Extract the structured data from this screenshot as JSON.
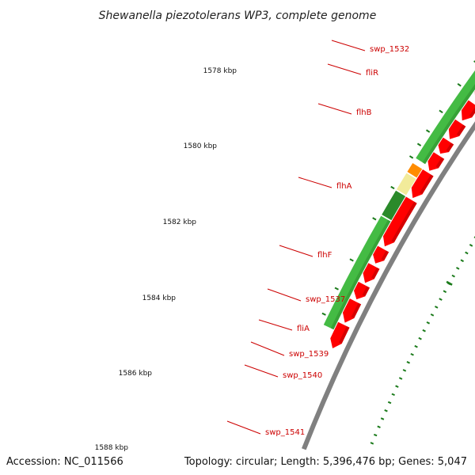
{
  "title": "Shewanella piezotolerans WP3, complete genome",
  "accession": "Accession: NC_011566",
  "summary": "Topology: circular; Length: 5,396,476 bp; Genes: 5,047",
  "colors": {
    "backbone": "#808080",
    "cds": "#ff0000",
    "cds_dark": "#b30000",
    "tick": "#1a7a1a",
    "label": "#cc0000",
    "green_dark": "#2a8a2a",
    "green_light": "#9be02a",
    "green_mid": "#44bb44",
    "pale_yellow": "#f2eb9a",
    "orange": "#ff8c00"
  },
  "kbp_labels": [
    {
      "pos_kbp": 1578,
      "label": "1578 kbp"
    },
    {
      "pos_kbp": 1580,
      "label": "1580 kbp"
    },
    {
      "pos_kbp": 1582,
      "label": "1582 kbp"
    },
    {
      "pos_kbp": 1584,
      "label": "1584 kbp"
    },
    {
      "pos_kbp": 1586,
      "label": "1586 kbp"
    },
    {
      "pos_kbp": 1588,
      "label": "1588 kbp"
    }
  ],
  "gene_labels": [
    {
      "name": "swp_1532"
    },
    {
      "name": "fliR"
    },
    {
      "name": "flhB"
    },
    {
      "name": "flhA"
    },
    {
      "name": "flhF"
    },
    {
      "name": "swp_1537"
    },
    {
      "name": "fliA"
    },
    {
      "name": "swp_1539"
    },
    {
      "name": "swp_1540"
    },
    {
      "name": "swp_1541"
    }
  ]
}
